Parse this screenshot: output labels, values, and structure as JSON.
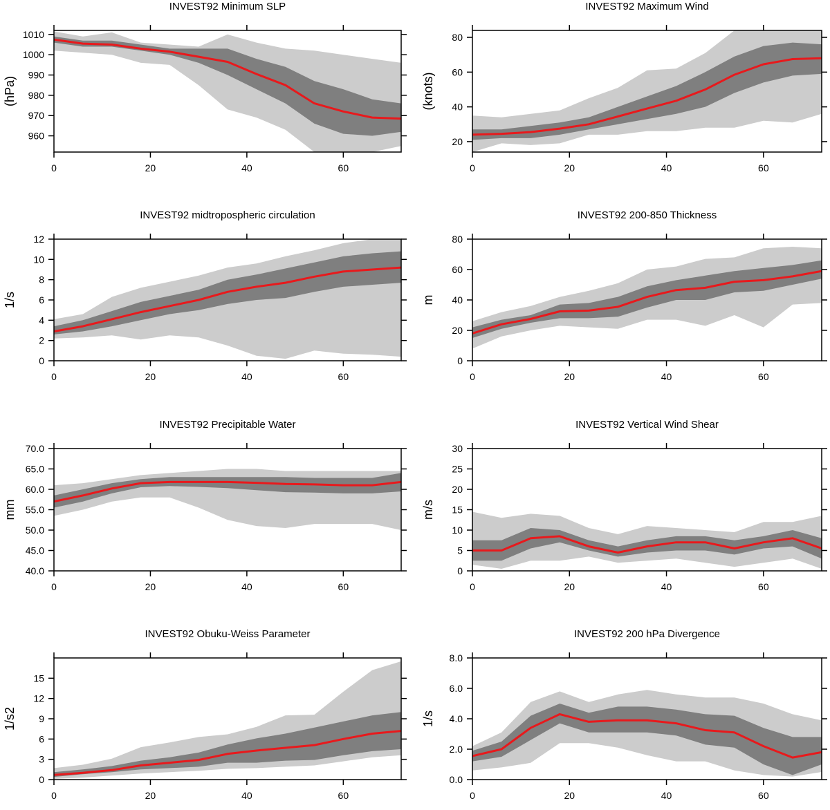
{
  "colors": {
    "outer_band": "#cccccc",
    "inner_band": "#7f7f7f",
    "mean_line": "#e8191c",
    "axis": "#000000"
  },
  "chart_data": [
    {
      "type": "line",
      "title": "INVEST92 Minimum SLP",
      "ylabel": "(hPa)",
      "xlim": [
        0,
        72
      ],
      "ylim": [
        952,
        1012
      ],
      "xticks": [
        0,
        20,
        40,
        60
      ],
      "yticks": [
        960,
        970,
        980,
        990,
        1000,
        1010
      ],
      "ytick_labels": [
        "960",
        "970",
        "980",
        "990",
        "1000",
        "1010"
      ],
      "x": [
        0,
        6,
        12,
        18,
        24,
        30,
        36,
        42,
        48,
        54,
        60,
        66,
        72
      ],
      "series": [
        {
          "role": "outer_band",
          "upper": [
            1011.5,
            1009,
            1011,
            1006,
            1005,
            1004,
            1010,
            1006,
            1003,
            1002,
            1000,
            998,
            996
          ],
          "lower": [
            1002,
            1001,
            1000,
            996,
            995,
            985,
            973,
            969,
            963,
            952,
            952,
            952,
            955
          ]
        },
        {
          "role": "inner_band",
          "upper": [
            1009,
            1007,
            1007,
            1005,
            1003,
            1003,
            1003,
            998,
            994,
            987,
            983,
            978,
            976
          ],
          "lower": [
            1006,
            1004,
            1004,
            1002,
            1000,
            996,
            990,
            983,
            976,
            966,
            961,
            960,
            962
          ]
        },
        {
          "role": "mean",
          "values": [
            1007.5,
            1005.5,
            1005,
            1003,
            1001.5,
            999,
            996.5,
            990.5,
            985,
            976,
            972,
            969,
            968.5
          ]
        }
      ]
    },
    {
      "type": "line",
      "title": "INVEST92 Maximum Wind",
      "ylabel": "(knots)",
      "xlim": [
        0,
        72
      ],
      "ylim": [
        14,
        84
      ],
      "xticks": [
        0,
        20,
        40,
        60
      ],
      "yticks": [
        20,
        40,
        60,
        80
      ],
      "ytick_labels": [
        "20",
        "40",
        "60",
        "80"
      ],
      "x": [
        0,
        6,
        12,
        18,
        24,
        30,
        36,
        42,
        48,
        54,
        60,
        66,
        72
      ],
      "series": [
        {
          "role": "outer_band",
          "upper": [
            35,
            34,
            36,
            38,
            45,
            51,
            61,
            62,
            71,
            84,
            84,
            84,
            84
          ],
          "lower": [
            14,
            19,
            18,
            19,
            24,
            24,
            26,
            26,
            28,
            28,
            32,
            31,
            36
          ]
        },
        {
          "role": "inner_band",
          "upper": [
            27,
            27,
            29,
            31,
            34,
            40,
            46,
            52,
            60,
            69,
            75,
            77,
            76
          ],
          "lower": [
            21,
            22,
            22,
            24,
            27,
            30,
            33,
            36,
            40,
            48,
            54,
            58,
            59
          ]
        },
        {
          "role": "mean",
          "values": [
            24,
            24.5,
            25.5,
            27.5,
            30,
            34.5,
            39,
            43.5,
            50,
            58.5,
            64.5,
            67.5,
            68
          ]
        }
      ]
    },
    {
      "type": "line",
      "title": "INVEST92 midtropospheric circulation",
      "ylabel": "1/s",
      "xlim": [
        0,
        72
      ],
      "ylim": [
        0,
        12
      ],
      "xticks": [
        0,
        20,
        40,
        60
      ],
      "yticks": [
        0,
        2,
        4,
        6,
        8,
        10,
        12
      ],
      "ytick_labels": [
        "0",
        "2",
        "4",
        "6",
        "8",
        "10",
        "12"
      ],
      "x": [
        0,
        6,
        12,
        18,
        24,
        30,
        36,
        42,
        48,
        54,
        60,
        66,
        72
      ],
      "series": [
        {
          "role": "outer_band",
          "upper": [
            4.1,
            4.6,
            6.3,
            7.2,
            7.8,
            8.4,
            9.2,
            9.6,
            10.3,
            10.9,
            11.6,
            12,
            12
          ],
          "lower": [
            2.2,
            2.3,
            2.5,
            2.1,
            2.5,
            2.3,
            1.5,
            0.5,
            0.2,
            1.0,
            0.7,
            0.6,
            0.4
          ]
        },
        {
          "role": "inner_band",
          "upper": [
            3.4,
            4.0,
            4.9,
            5.8,
            6.4,
            7.0,
            8.0,
            8.5,
            9.1,
            9.7,
            10.3,
            10.6,
            10.8
          ],
          "lower": [
            2.6,
            2.9,
            3.4,
            4.0,
            4.6,
            5.0,
            5.6,
            6.0,
            6.2,
            6.8,
            7.3,
            7.5,
            7.7
          ]
        },
        {
          "role": "mean",
          "values": [
            2.9,
            3.4,
            4.1,
            4.8,
            5.4,
            6.0,
            6.8,
            7.3,
            7.7,
            8.3,
            8.8,
            9.0,
            9.2
          ]
        }
      ]
    },
    {
      "type": "line",
      "title": "INVEST92 200-850 Thickness",
      "ylabel": "m",
      "xlim": [
        0,
        72
      ],
      "ylim": [
        0,
        80
      ],
      "xticks": [
        0,
        20,
        40,
        60
      ],
      "yticks": [
        0,
        20,
        40,
        60,
        80
      ],
      "ytick_labels": [
        "0",
        "20",
        "40",
        "60",
        "80"
      ],
      "x": [
        0,
        6,
        12,
        18,
        24,
        30,
        36,
        42,
        48,
        54,
        60,
        66,
        72
      ],
      "series": [
        {
          "role": "outer_band",
          "upper": [
            26,
            32,
            36,
            42,
            46,
            51,
            60,
            62,
            67,
            68,
            74,
            75,
            74
          ],
          "lower": [
            8,
            16,
            20,
            23,
            22,
            21,
            27,
            27,
            23,
            30,
            22,
            37,
            38
          ]
        },
        {
          "role": "inner_band",
          "upper": [
            22,
            27,
            30,
            37,
            38,
            42,
            49,
            53,
            56,
            59,
            61,
            63,
            66
          ],
          "lower": [
            15,
            21,
            25,
            28,
            28,
            29,
            35,
            40,
            40,
            45,
            46,
            50,
            54
          ]
        },
        {
          "role": "mean",
          "values": [
            18,
            24,
            27.5,
            32.5,
            33,
            35.5,
            42,
            46.5,
            48,
            52,
            53,
            55.5,
            59
          ]
        }
      ]
    },
    {
      "type": "line",
      "title": "INVEST92 Precipitable Water",
      "ylabel": "mm",
      "xlim": [
        0,
        72
      ],
      "ylim": [
        40,
        70
      ],
      "xticks": [
        0,
        20,
        40,
        60
      ],
      "yticks": [
        40,
        45,
        50,
        55,
        60,
        65,
        70
      ],
      "ytick_labels": [
        "40.0",
        "45.0",
        "50.0",
        "55.0",
        "60.0",
        "65.0",
        "70.0"
      ],
      "x": [
        0,
        6,
        12,
        18,
        24,
        30,
        36,
        42,
        48,
        54,
        60,
        66,
        72
      ],
      "series": [
        {
          "role": "outer_band",
          "upper": [
            61,
            61.5,
            62.5,
            63.5,
            64,
            64.5,
            65,
            65,
            64.5,
            64.5,
            64.5,
            64.5,
            64.5
          ],
          "lower": [
            53.5,
            55,
            57,
            58,
            58,
            55.5,
            52.5,
            51,
            50.5,
            51.5,
            51.5,
            51.5,
            50
          ]
        },
        {
          "role": "inner_band",
          "upper": [
            58.5,
            60,
            61.5,
            62.5,
            63,
            63,
            63,
            63,
            63,
            62.8,
            62.8,
            62.8,
            64
          ],
          "lower": [
            55.5,
            57,
            59,
            60.5,
            60.8,
            60.6,
            60.3,
            59.8,
            59.3,
            59.2,
            59,
            59,
            59.5
          ]
        },
        {
          "role": "mean",
          "values": [
            57,
            58.5,
            60.2,
            61.5,
            61.8,
            61.8,
            61.8,
            61.6,
            61.3,
            61.2,
            61,
            61,
            61.8
          ]
        }
      ]
    },
    {
      "type": "line",
      "title": "INVEST92 Vertical Wind Shear",
      "ylabel": "m/s",
      "xlim": [
        0,
        72
      ],
      "ylim": [
        0,
        30
      ],
      "xticks": [
        0,
        20,
        40,
        60
      ],
      "yticks": [
        0,
        5,
        10,
        15,
        20,
        25,
        30
      ],
      "ytick_labels": [
        "0",
        "5",
        "10",
        "15",
        "20",
        "25",
        "30"
      ],
      "x": [
        0,
        6,
        12,
        18,
        24,
        30,
        36,
        42,
        48,
        54,
        60,
        66,
        72
      ],
      "series": [
        {
          "role": "outer_band",
          "upper": [
            14.5,
            13,
            14,
            13.5,
            10.5,
            9,
            11,
            10.5,
            10,
            9.5,
            12,
            12,
            13.5
          ],
          "lower": [
            1.5,
            0.5,
            2.5,
            2.5,
            3.5,
            2,
            2.5,
            3,
            2,
            1,
            2,
            3,
            0.5
          ]
        },
        {
          "role": "inner_band",
          "upper": [
            7.5,
            7.5,
            10.5,
            10,
            7.5,
            6,
            7.5,
            8.5,
            8.5,
            7.5,
            8.5,
            10,
            8
          ],
          "lower": [
            2.5,
            2.5,
            5.5,
            7,
            5,
            3.5,
            4.5,
            5,
            5,
            4,
            5.5,
            6,
            3
          ]
        },
        {
          "role": "mean",
          "values": [
            5,
            5,
            8,
            8.5,
            6,
            4.5,
            6,
            7,
            7,
            5.5,
            7,
            8,
            5.5
          ]
        }
      ]
    },
    {
      "type": "line",
      "title": "INVEST92 Obuku-Weiss Parameter",
      "ylabel": "1/s2",
      "xlim": [
        0,
        72
      ],
      "ylim": [
        0,
        18
      ],
      "xticks": [
        0,
        20,
        40,
        60
      ],
      "yticks": [
        0,
        3,
        6,
        9,
        12,
        15
      ],
      "ytick_labels": [
        "0",
        "3",
        "6",
        "9",
        "12",
        "15"
      ],
      "x": [
        0,
        6,
        12,
        18,
        24,
        30,
        36,
        42,
        48,
        54,
        60,
        66,
        72
      ],
      "series": [
        {
          "role": "outer_band",
          "upper": [
            1.7,
            2.2,
            3.1,
            4.8,
            5.5,
            6.3,
            6.7,
            7.8,
            9.5,
            9.6,
            13,
            16.2,
            17.5
          ],
          "lower": [
            0.1,
            0.3,
            0.6,
            0.9,
            1.1,
            1.3,
            1.6,
            1.7,
            1.9,
            2.1,
            2.7,
            3.3,
            3.6
          ]
        },
        {
          "role": "inner_band",
          "upper": [
            1.1,
            1.5,
            2.0,
            2.8,
            3.3,
            4.0,
            5.2,
            6.1,
            6.8,
            7.7,
            8.6,
            9.5,
            10.0
          ],
          "lower": [
            0.4,
            0.8,
            1.1,
            1.5,
            1.7,
            1.9,
            2.5,
            2.5,
            2.8,
            2.9,
            3.6,
            4.2,
            4.5
          ]
        },
        {
          "role": "mean",
          "values": [
            0.7,
            1.0,
            1.4,
            2.1,
            2.5,
            2.9,
            3.8,
            4.3,
            4.7,
            5.1,
            6.0,
            6.8,
            7.2
          ]
        }
      ]
    },
    {
      "type": "line",
      "title": "INVEST92 200 hPa Divergence",
      "ylabel": "1/s",
      "xlim": [
        0,
        72
      ],
      "ylim": [
        0,
        8
      ],
      "xticks": [
        0,
        20,
        40,
        60
      ],
      "yticks": [
        0,
        2,
        4,
        6,
        8
      ],
      "ytick_labels": [
        "0.0",
        "2.0",
        "4.0",
        "6.0",
        "8.0"
      ],
      "x": [
        0,
        6,
        12,
        18,
        24,
        30,
        36,
        42,
        48,
        54,
        60,
        66,
        72
      ],
      "series": [
        {
          "role": "outer_band",
          "upper": [
            2.2,
            3.1,
            5.1,
            5.8,
            5.1,
            5.6,
            5.9,
            5.6,
            5.4,
            5.4,
            5.0,
            4.3,
            3.9
          ],
          "lower": [
            0.6,
            0.8,
            1.1,
            2.4,
            2.4,
            2.1,
            1.6,
            1.2,
            1.2,
            0.6,
            0.3,
            0.2,
            0.5
          ]
        },
        {
          "role": "inner_band",
          "upper": [
            1.9,
            2.5,
            4.2,
            5.0,
            4.4,
            4.8,
            4.8,
            4.6,
            4.3,
            4.2,
            3.4,
            2.8,
            2.8
          ],
          "lower": [
            1.2,
            1.5,
            2.6,
            3.7,
            3.1,
            3.1,
            3.1,
            2.9,
            2.3,
            2.1,
            1.0,
            0.3,
            1.0
          ]
        },
        {
          "role": "mean",
          "values": [
            1.55,
            2.0,
            3.4,
            4.3,
            3.8,
            3.9,
            3.9,
            3.7,
            3.25,
            3.1,
            2.2,
            1.45,
            1.8
          ]
        }
      ]
    }
  ]
}
